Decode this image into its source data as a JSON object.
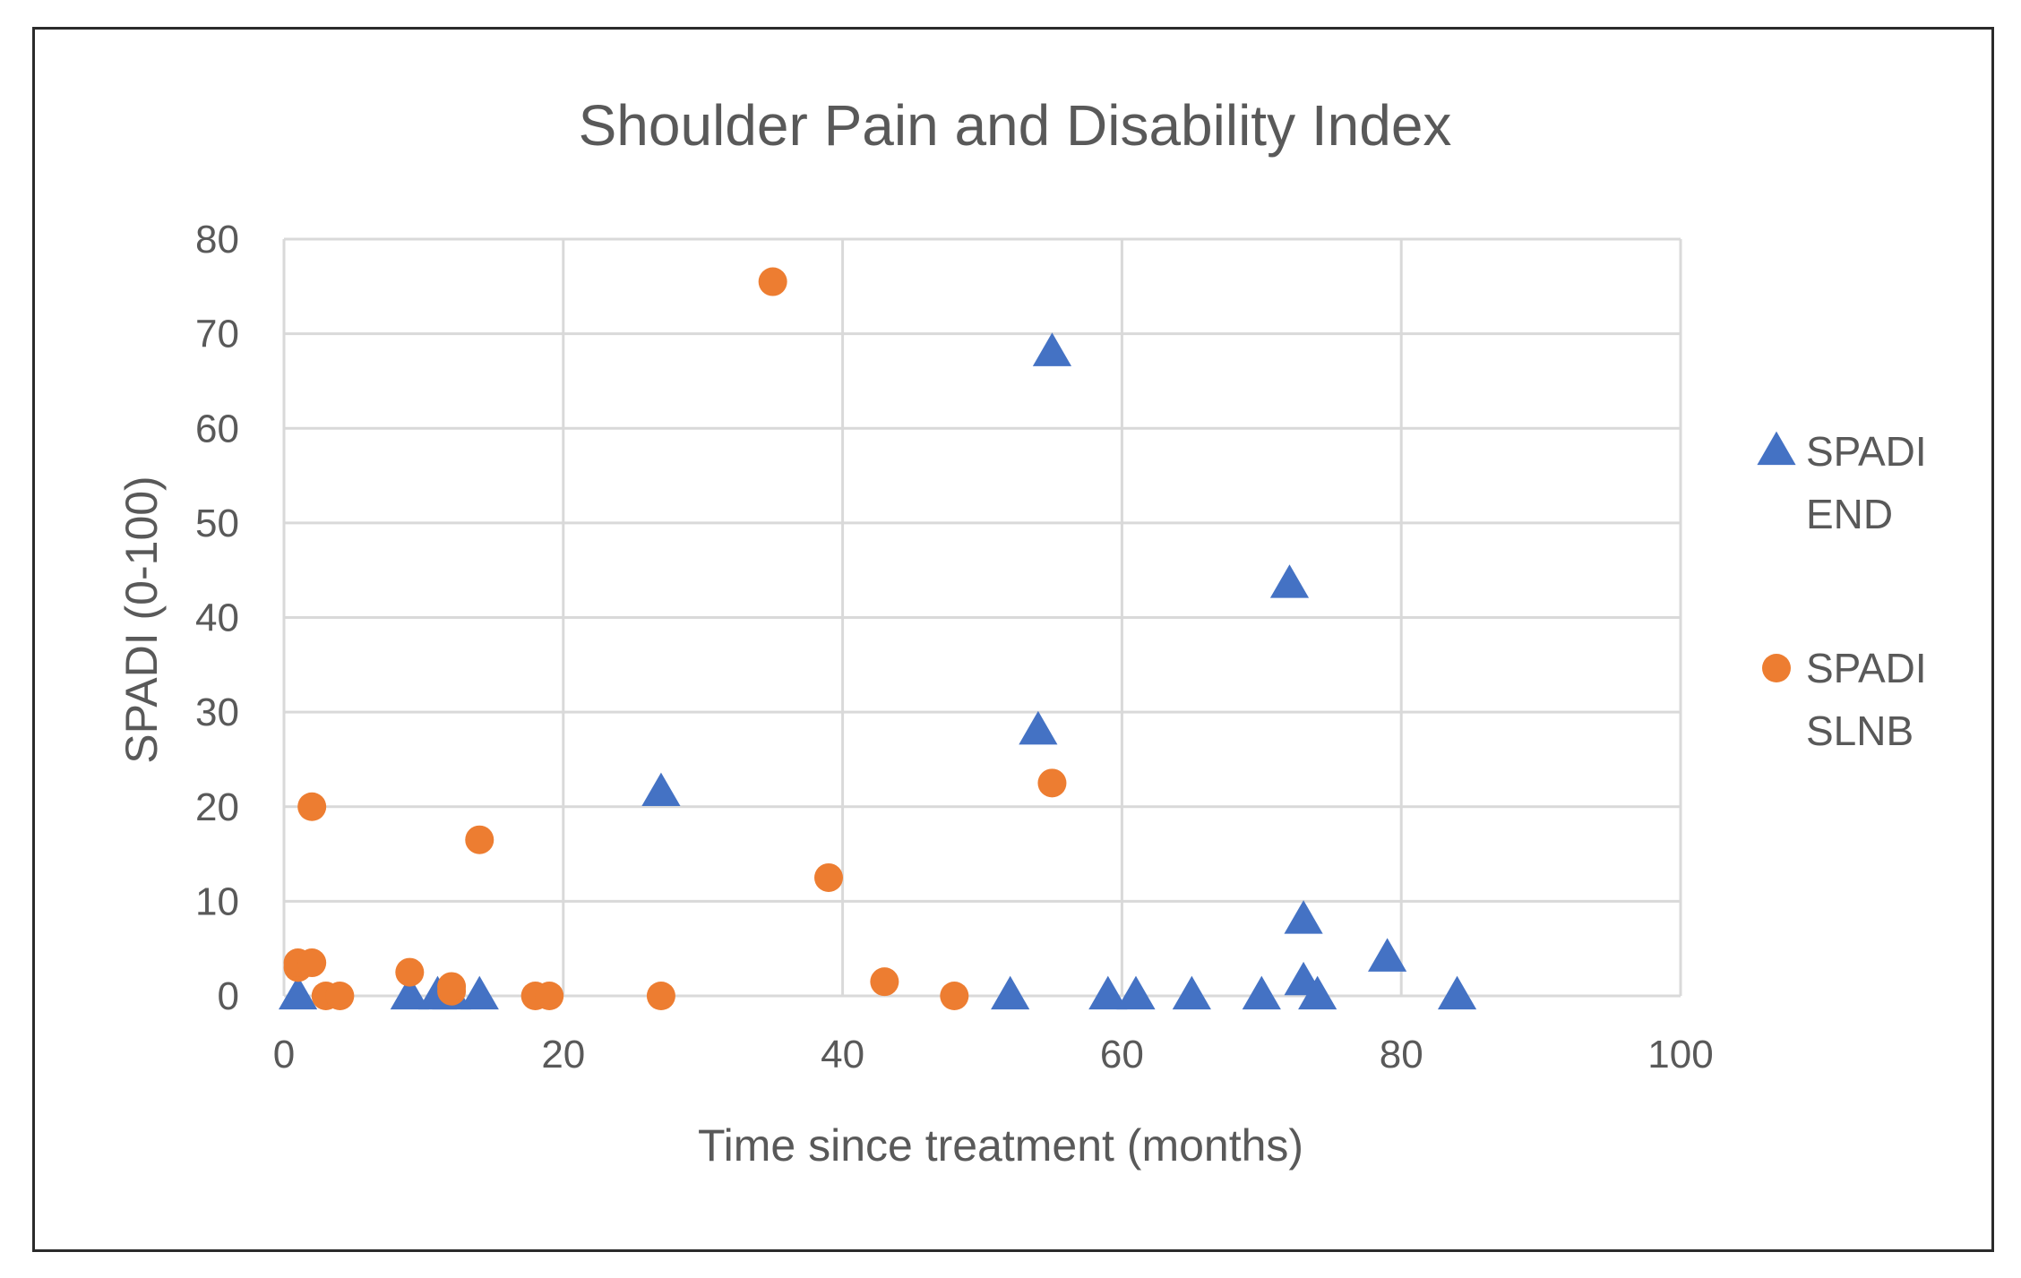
{
  "chart_data": {
    "type": "scatter",
    "title": "Shoulder Pain and Disability Index",
    "xlabel": "Time since treatment (months)",
    "ylabel": "SPADI (0-100)",
    "xlim": [
      0,
      100
    ],
    "ylim": [
      0,
      80
    ],
    "xticks": [
      0,
      20,
      40,
      60,
      80,
      100
    ],
    "yticks": [
      0,
      10,
      20,
      30,
      40,
      50,
      60,
      70,
      80
    ],
    "grid": true,
    "legend_position": "right",
    "series": [
      {
        "name": "SPADI END",
        "legend_lines": [
          "SPADI",
          "END"
        ],
        "marker": "triangle",
        "color": "#4472C4",
        "points": [
          [
            1,
            0
          ],
          [
            9,
            0
          ],
          [
            11,
            0
          ],
          [
            12,
            0
          ],
          [
            14,
            0
          ],
          [
            27,
            21.5
          ],
          [
            52,
            0
          ],
          [
            54,
            28
          ],
          [
            55,
            68
          ],
          [
            59,
            0
          ],
          [
            61,
            0
          ],
          [
            65,
            0
          ],
          [
            70,
            0
          ],
          [
            72,
            43.5
          ],
          [
            73,
            8
          ],
          [
            73,
            1.5
          ],
          [
            74,
            0
          ],
          [
            79,
            4
          ],
          [
            84,
            0
          ]
        ]
      },
      {
        "name": "SPADI SLNB",
        "legend_lines": [
          "SPADI",
          "SLNB"
        ],
        "marker": "circle",
        "color": "#ED7D31",
        "points": [
          [
            1,
            3
          ],
          [
            1,
            3.5
          ],
          [
            2,
            3.5
          ],
          [
            2,
            20
          ],
          [
            3,
            0
          ],
          [
            4,
            0
          ],
          [
            9,
            2.5
          ],
          [
            12,
            0.5
          ],
          [
            12,
            1
          ],
          [
            14,
            16.5
          ],
          [
            18,
            0
          ],
          [
            19,
            0
          ],
          [
            27,
            0
          ],
          [
            35,
            75.5
          ],
          [
            39,
            12.5
          ],
          [
            43,
            1.5
          ],
          [
            48,
            0
          ],
          [
            55,
            22.5
          ]
        ]
      }
    ]
  }
}
